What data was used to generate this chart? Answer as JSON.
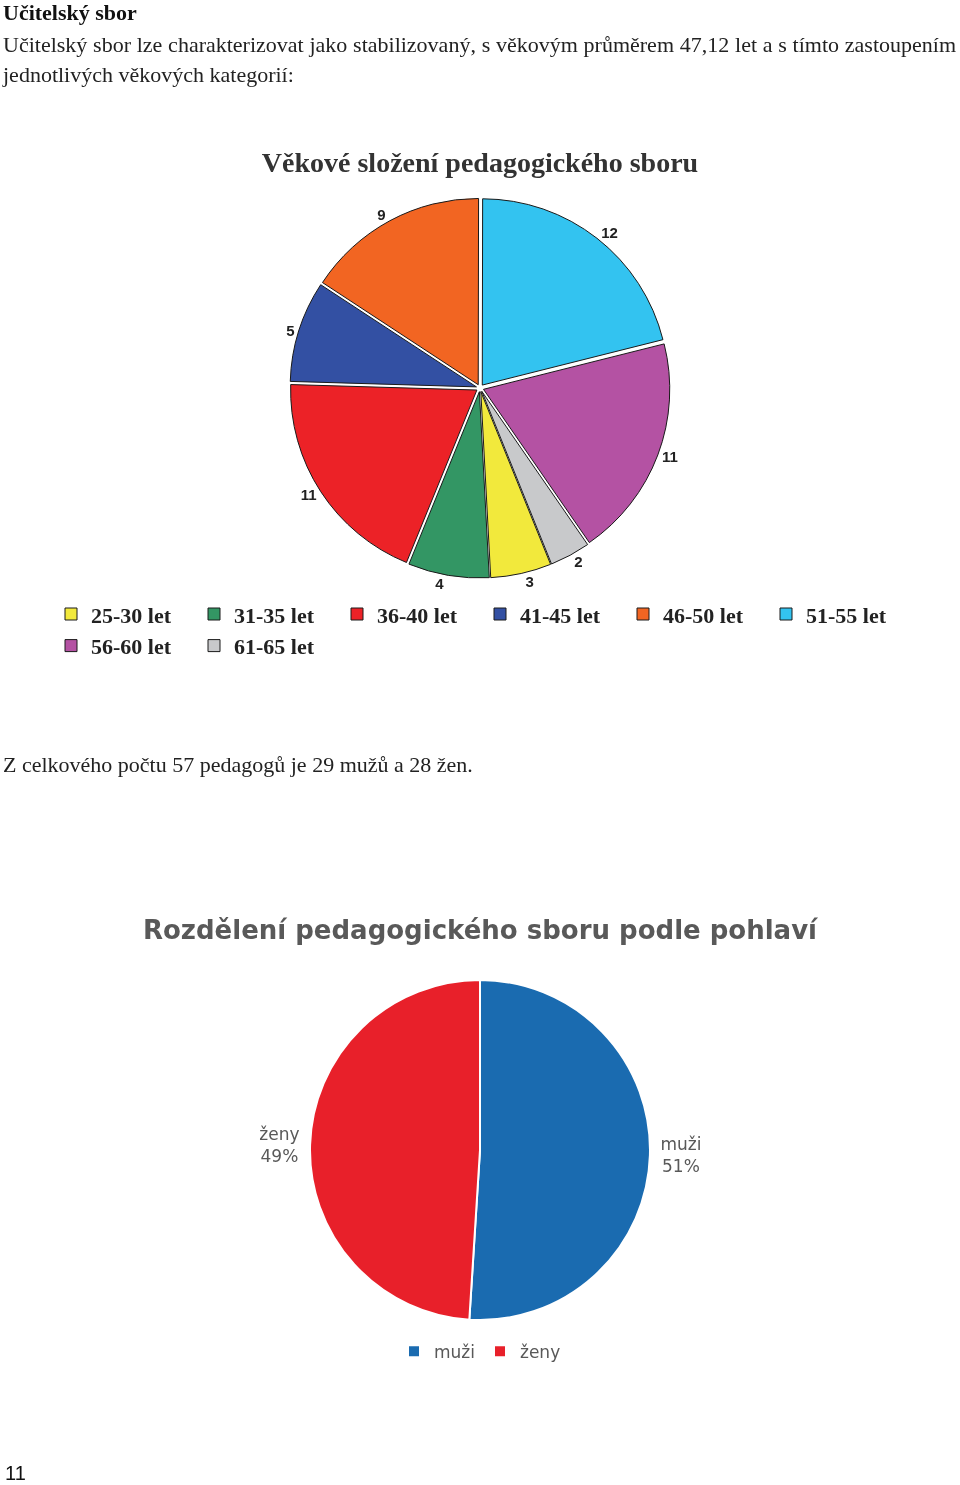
{
  "chart_data": [
    {
      "type": "pie",
      "title": "Věkové složení pedagogického sboru",
      "annotations": [
        "Učitelský sbor",
        "Učitelský sbor lze charakterizovat jako stabilizovaný, s věkovým průměrem 47,12 let a s tímto zastoupením jednotlivých věkových kategorií:"
      ],
      "categories": [
        "25-30 let",
        "31-35 let",
        "36-40 let",
        "41-45 let",
        "46-50 let",
        "51-55 let",
        "56-60 let",
        "61-65 let"
      ],
      "values": [
        3,
        4,
        11,
        5,
        9,
        12,
        11,
        2
      ],
      "colors": [
        "#f2e93c",
        "#339664",
        "#ec2227",
        "#3350a3",
        "#f26522",
        "#33c3f0",
        "#b452a3",
        "#c8c9cb"
      ],
      "data_labels": true,
      "legend": "bottom"
    },
    {
      "type": "pie",
      "title": "Rozdělení pedagogického sboru podle pohlaví",
      "annotations": [
        "Z celkového počtu 57 pedagogů je 29 mužů a 28 žen.",
        "11"
      ],
      "categories": [
        "muži",
        "ženy"
      ],
      "values": [
        51,
        49
      ],
      "value_labels": [
        "51%",
        "49%"
      ],
      "colors": [
        "#1a6bb0",
        "#e8202a"
      ],
      "legend": "bottom"
    }
  ]
}
